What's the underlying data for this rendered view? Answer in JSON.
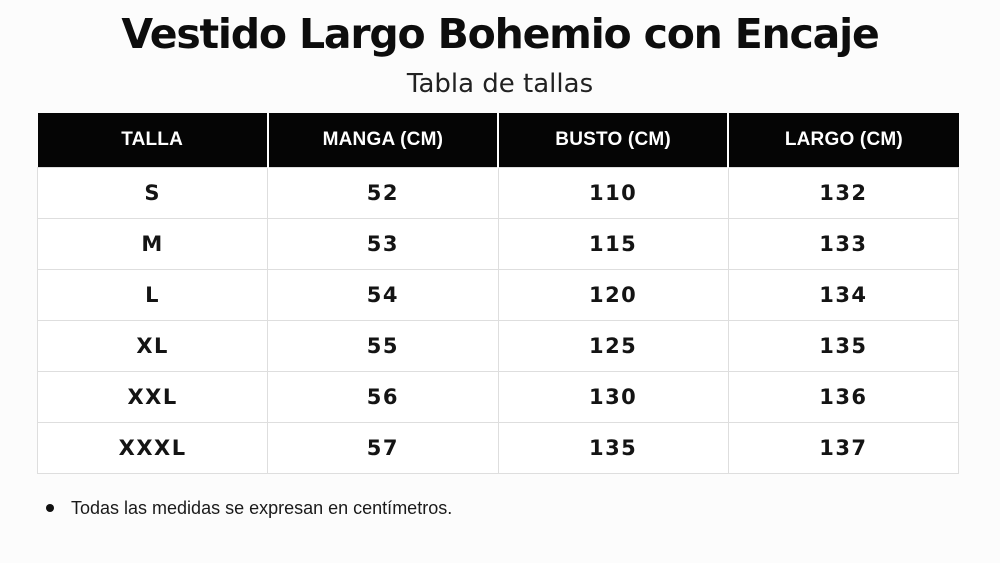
{
  "header": {
    "title": "Vestido Largo Bohemio con Encaje",
    "subtitle": "Tabla de tallas"
  },
  "table": {
    "columns": [
      "TALLA",
      "MANGA (CM)",
      "BUSTO (CM)",
      "LARGO (CM)"
    ],
    "rows": [
      [
        "S",
        "52",
        "110",
        "132"
      ],
      [
        "M",
        "53",
        "115",
        "133"
      ],
      [
        "L",
        "54",
        "120",
        "134"
      ],
      [
        "XL",
        "55",
        "125",
        "135"
      ],
      [
        "XXL",
        "56",
        "130",
        "136"
      ],
      [
        "XXXL",
        "57",
        "135",
        "137"
      ]
    ]
  },
  "footnote": {
    "icon": "bullet-icon",
    "text": "Todas las medidas se expresan en centímetros."
  },
  "colors": {
    "header_background": "#050505",
    "header_text": "#ffffff",
    "cell_border": "#dedede",
    "page_background": "#fcfcfc"
  }
}
